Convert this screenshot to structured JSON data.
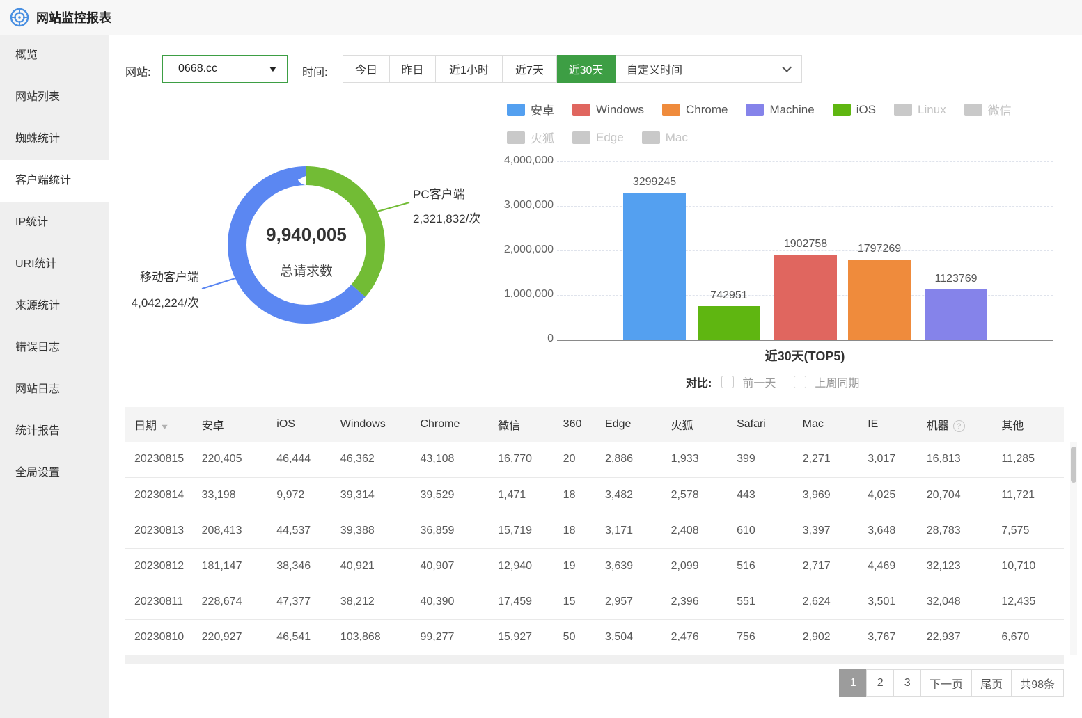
{
  "header": {
    "title": "网站监控报表"
  },
  "sidebar": {
    "items": [
      {
        "label": "概览",
        "active": false
      },
      {
        "label": "网站列表",
        "active": false
      },
      {
        "label": "蜘蛛统计",
        "active": false
      },
      {
        "label": "客户端统计",
        "active": true
      },
      {
        "label": "IP统计",
        "active": false
      },
      {
        "label": "URI统计",
        "active": false
      },
      {
        "label": "来源统计",
        "active": false
      },
      {
        "label": "错误日志",
        "active": false
      },
      {
        "label": "网站日志",
        "active": false
      },
      {
        "label": "统计报告",
        "active": false
      },
      {
        "label": "全局设置",
        "active": false
      }
    ]
  },
  "filters": {
    "site_label": "网站:",
    "site_value": "0668.cc",
    "time_label": "时间:",
    "time_options": [
      "今日",
      "昨日",
      "近1小时",
      "近7天",
      "近30天"
    ],
    "time_selected": "近30天",
    "custom_time_label": "自定义时间"
  },
  "legend": {
    "rows": [
      [
        {
          "label": "安卓",
          "color": "#54a0f0",
          "dim": false
        },
        {
          "label": "Windows",
          "color": "#e0665f",
          "dim": false
        },
        {
          "label": "Chrome",
          "color": "#ef8b3c",
          "dim": false
        },
        {
          "label": "Machine",
          "color": "#8583ea",
          "dim": false
        },
        {
          "label": "iOS",
          "color": "#5fb611",
          "dim": false
        },
        {
          "label": "Linux",
          "color": "#c9c9c9",
          "dim": true
        },
        {
          "label": "微信",
          "color": "#c9c9c9",
          "dim": true
        }
      ],
      [
        {
          "label": "火狐",
          "color": "#c9c9c9",
          "dim": true
        },
        {
          "label": "Edge",
          "color": "#c9c9c9",
          "dim": true
        },
        {
          "label": "Mac",
          "color": "#c9c9c9",
          "dim": true
        }
      ]
    ]
  },
  "chart_data": [
    {
      "type": "donut",
      "center_value": "9,940,005",
      "center_label": "总请求数",
      "segments": [
        {
          "label": "PC客户端",
          "value": 2321832,
          "display": "2,321,832/次",
          "color": "#72bc35"
        },
        {
          "label": "移动客户端",
          "value": 4042224,
          "display": "4,042,224/次",
          "color": "#5b87f2"
        }
      ]
    },
    {
      "type": "bar",
      "title": "近30天(TOP5)",
      "categories": [
        "安卓",
        "iOS",
        "Windows",
        "Chrome",
        "Machine"
      ],
      "values": [
        3299245,
        742951,
        1902758,
        1797269,
        1123769
      ],
      "colors": [
        "#54a0f0",
        "#5fb611",
        "#e0665f",
        "#ef8b3c",
        "#8583ea"
      ],
      "ylim": [
        0,
        4000000
      ],
      "ytick_labels": [
        "4,000,000",
        "3,000,000",
        "2,000,000",
        "1,000,000",
        "0"
      ],
      "grid": true,
      "legend_position": "top-right"
    }
  ],
  "compare": {
    "label": "对比:",
    "options": [
      "前一天",
      "上周同期"
    ]
  },
  "table": {
    "columns": [
      {
        "label": "日期",
        "sort": true
      },
      {
        "label": "安卓"
      },
      {
        "label": "iOS"
      },
      {
        "label": "Windows"
      },
      {
        "label": "Chrome"
      },
      {
        "label": "微信"
      },
      {
        "label": "360"
      },
      {
        "label": "Edge"
      },
      {
        "label": "火狐"
      },
      {
        "label": "Safari"
      },
      {
        "label": "Mac"
      },
      {
        "label": "IE"
      },
      {
        "label": "机器",
        "help": true
      },
      {
        "label": "其他"
      }
    ],
    "rows": [
      [
        "20230815",
        "220,405",
        "46,444",
        "46,362",
        "43,108",
        "16,770",
        "20",
        "2,886",
        "1,933",
        "399",
        "2,271",
        "3,017",
        "16,813",
        "11,285"
      ],
      [
        "20230814",
        "33,198",
        "9,972",
        "39,314",
        "39,529",
        "1,471",
        "18",
        "3,482",
        "2,578",
        "443",
        "3,969",
        "4,025",
        "20,704",
        "11,721"
      ],
      [
        "20230813",
        "208,413",
        "44,537",
        "39,388",
        "36,859",
        "15,719",
        "18",
        "3,171",
        "2,408",
        "610",
        "3,397",
        "3,648",
        "28,783",
        "7,575"
      ],
      [
        "20230812",
        "181,147",
        "38,346",
        "40,921",
        "40,907",
        "12,940",
        "19",
        "3,639",
        "2,099",
        "516",
        "2,717",
        "4,469",
        "32,123",
        "10,710"
      ],
      [
        "20230811",
        "228,674",
        "47,377",
        "38,212",
        "40,390",
        "17,459",
        "15",
        "2,957",
        "2,396",
        "551",
        "2,624",
        "3,501",
        "32,048",
        "12,435"
      ],
      [
        "20230810",
        "220,927",
        "46,541",
        "103,868",
        "99,277",
        "15,927",
        "50",
        "3,504",
        "2,476",
        "756",
        "2,902",
        "3,767",
        "22,937",
        "6,670"
      ]
    ]
  },
  "pagination": {
    "pages": [
      "1",
      "2",
      "3"
    ],
    "current": "1",
    "next_label": "下一页",
    "last_label": "尾页",
    "total_label": "共98条"
  }
}
